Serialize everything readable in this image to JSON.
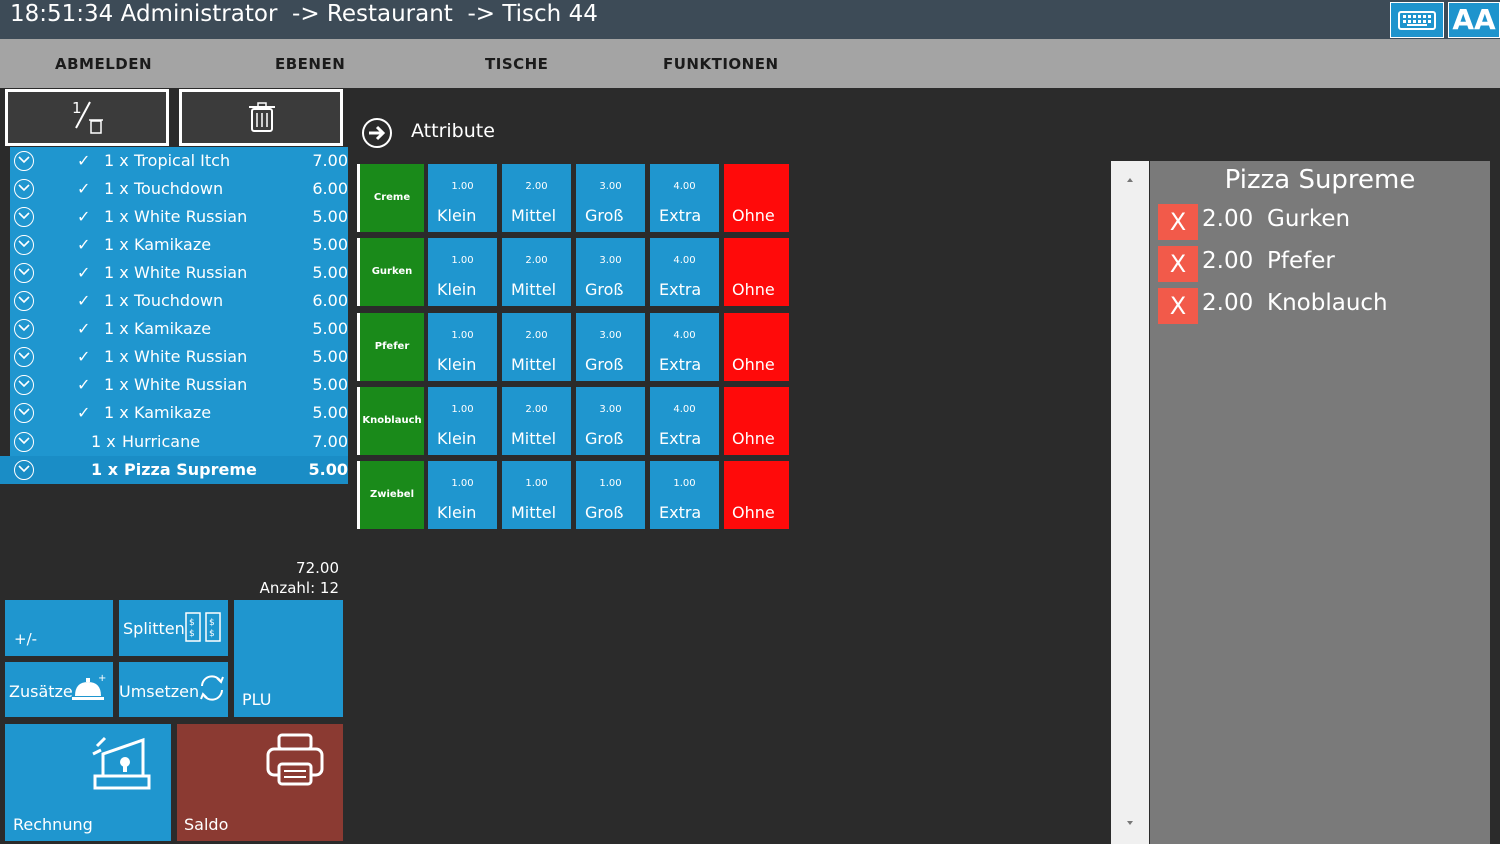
{
  "titlebar": {
    "title": "18:51:34 Administrator  -> Restaurant  -> Tisch 44",
    "font_button": "AA",
    "keyboard_icon": "keyboard-icon"
  },
  "menu": {
    "items": [
      "ABMELDEN",
      "EBENEN",
      "TISCHE",
      "FUNKTIONEN"
    ]
  },
  "order": {
    "items": [
      {
        "checked": true,
        "qty": "1 x",
        "name": "Tropical Itch",
        "price": "7.00"
      },
      {
        "checked": true,
        "qty": "1 x",
        "name": "Touchdown",
        "price": "6.00"
      },
      {
        "checked": true,
        "qty": "1 x",
        "name": "White Russian",
        "price": "5.00"
      },
      {
        "checked": true,
        "qty": "1 x",
        "name": "Kamikaze",
        "price": "5.00"
      },
      {
        "checked": true,
        "qty": "1 x",
        "name": "White Russian",
        "price": "5.00"
      },
      {
        "checked": true,
        "qty": "1 x",
        "name": "Touchdown",
        "price": "6.00"
      },
      {
        "checked": true,
        "qty": "1 x",
        "name": "Kamikaze",
        "price": "5.00"
      },
      {
        "checked": true,
        "qty": "1 x",
        "name": "White Russian",
        "price": "5.00"
      },
      {
        "checked": true,
        "qty": "1 x",
        "name": "White Russian",
        "price": "5.00"
      },
      {
        "checked": true,
        "qty": "1 x",
        "name": "Kamikaze",
        "price": "5.00"
      },
      {
        "checked": false,
        "qty": "1 x",
        "name": "Hurricane",
        "price": "7.00"
      },
      {
        "checked": false,
        "qty": "1 x",
        "name": "Pizza Supreme",
        "price": "5.00",
        "selected": true
      }
    ],
    "check_mark": "✓",
    "total": "72.00",
    "count_label": "Anzahl:",
    "count": "12"
  },
  "actions": {
    "plus_minus": "+/-",
    "split": "Splitten",
    "extras": "Zusätze",
    "move": "Umsetzen",
    "plu": "PLU",
    "invoice": "Rechnung",
    "balance": "Saldo"
  },
  "attributes": {
    "title": "Attribute",
    "rows": [
      {
        "name": "Creme",
        "options": [
          {
            "price": "1.00",
            "label": "Klein"
          },
          {
            "price": "2.00",
            "label": "Mittel"
          },
          {
            "price": "3.00",
            "label": "Groß"
          },
          {
            "price": "4.00",
            "label": "Extra"
          }
        ],
        "none": "Ohne"
      },
      {
        "name": "Gurken",
        "options": [
          {
            "price": "1.00",
            "label": "Klein"
          },
          {
            "price": "2.00",
            "label": "Mittel"
          },
          {
            "price": "3.00",
            "label": "Groß"
          },
          {
            "price": "4.00",
            "label": "Extra"
          }
        ],
        "none": "Ohne"
      },
      {
        "name": "Pfefer",
        "options": [
          {
            "price": "1.00",
            "label": "Klein"
          },
          {
            "price": "2.00",
            "label": "Mittel"
          },
          {
            "price": "3.00",
            "label": "Groß"
          },
          {
            "price": "4.00",
            "label": "Extra"
          }
        ],
        "none": "Ohne"
      },
      {
        "name": "Knoblauch",
        "options": [
          {
            "price": "1.00",
            "label": "Klein"
          },
          {
            "price": "2.00",
            "label": "Mittel"
          },
          {
            "price": "3.00",
            "label": "Groß"
          },
          {
            "price": "4.00",
            "label": "Extra"
          }
        ],
        "none": "Ohne"
      },
      {
        "name": "Zwiebel",
        "options": [
          {
            "price": "1.00",
            "label": "Klein"
          },
          {
            "price": "1.00",
            "label": "Mittel"
          },
          {
            "price": "1.00",
            "label": "Groß"
          },
          {
            "price": "1.00",
            "label": "Extra"
          }
        ],
        "none": "Ohne"
      }
    ]
  },
  "detail": {
    "title": "Pizza Supreme",
    "remove_label": "X",
    "items": [
      {
        "price": "2.00",
        "name": "Gurken"
      },
      {
        "price": "2.00",
        "name": "Pfefer"
      },
      {
        "price": "2.00",
        "name": "Knoblauch"
      }
    ]
  },
  "colors": {
    "titlebar": "#3d4b57",
    "accent_blue": "#1f96cf",
    "category_green": "#1a8a1a",
    "none_red": "#ff0a0a",
    "saldo": "#8b3a32",
    "remove_red": "#f25a4a"
  }
}
